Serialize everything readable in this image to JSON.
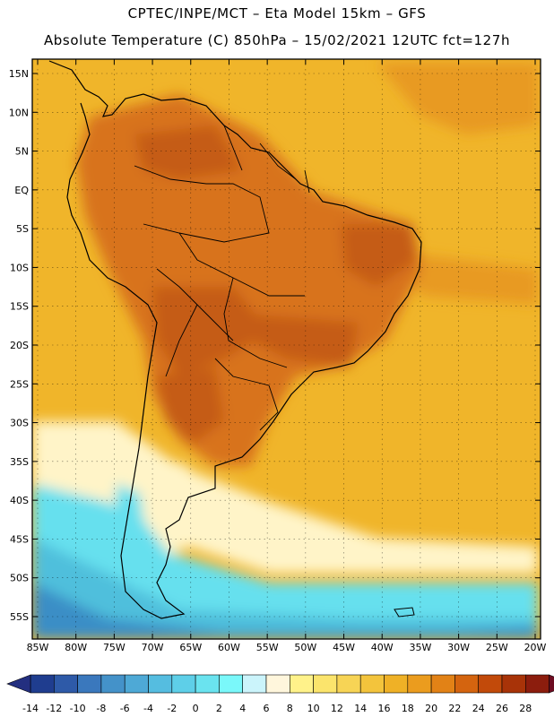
{
  "header": {
    "line1": "CPTEC/INPE/MCT –  Eta Model 15km – GFS",
    "line2": "Absolute Temperature (C) 850hPa – 15/02/2021 12UTC fct=127h"
  },
  "map": {
    "lon_range": [
      -85,
      -20
    ],
    "lat_range": [
      -58,
      16
    ],
    "lon_ticks": [
      -85,
      -80,
      -75,
      -70,
      -65,
      -60,
      -55,
      -50,
      -45,
      -40,
      -35,
      -30,
      -25,
      -20
    ],
    "lon_labels": [
      "85W",
      "80W",
      "75W",
      "70W",
      "65W",
      "60W",
      "55W",
      "50W",
      "45W",
      "40W",
      "35W",
      "30W",
      "25W",
      "20W"
    ],
    "lat_ticks": [
      15,
      10,
      5,
      0,
      -5,
      -10,
      -15,
      -20,
      -25,
      -30,
      -35,
      -40,
      -45,
      -50,
      -55
    ],
    "lat_labels": [
      "15N",
      "10N",
      "5N",
      "EQ",
      "5S",
      "10S",
      "15S",
      "20S",
      "25S",
      "30S",
      "35S",
      "40S",
      "45S",
      "50S",
      "55S"
    ]
  },
  "colorbar": {
    "levels": [
      -14,
      -12,
      -10,
      -8,
      -6,
      -4,
      -2,
      0,
      2,
      4,
      6,
      8,
      10,
      12,
      14,
      16,
      18,
      20,
      22,
      24,
      26,
      28
    ],
    "level_labels": [
      "-14",
      "-12",
      "-10",
      "-8",
      "-6",
      "-4",
      "-2",
      "0",
      "2",
      "4",
      "6",
      "8",
      "10",
      "12",
      "14",
      "16",
      "18",
      "20",
      "22",
      "24",
      "26",
      "28"
    ],
    "colors": [
      "#1f3d8f",
      "#2e5aa8",
      "#3a78bd",
      "#4492c9",
      "#4ea9d6",
      "#55bde0",
      "#5ecfe8",
      "#6ae3ef",
      "#7af8fa",
      "#cbf4fb",
      "#fff6dc",
      "#fff28a",
      "#fbe46c",
      "#f7d455",
      "#f3c43c",
      "#efb126",
      "#eb9c1e",
      "#e28216",
      "#d4640f",
      "#c24a0a",
      "#a83308",
      "#8c1d0d"
    ],
    "under_color": "#232f80",
    "over_color": "#6d0d22"
  },
  "bg_colors": {
    "ocean_warm": "#f0b52a",
    "ocean_hot": "#e89a22",
    "land_hot": "#d8731a",
    "land_very_hot": "#c55b12",
    "cool": "#fff4c8",
    "cold": "#66e0ee",
    "colder": "#4fbfdc",
    "coldest": "#3a8ec6"
  }
}
